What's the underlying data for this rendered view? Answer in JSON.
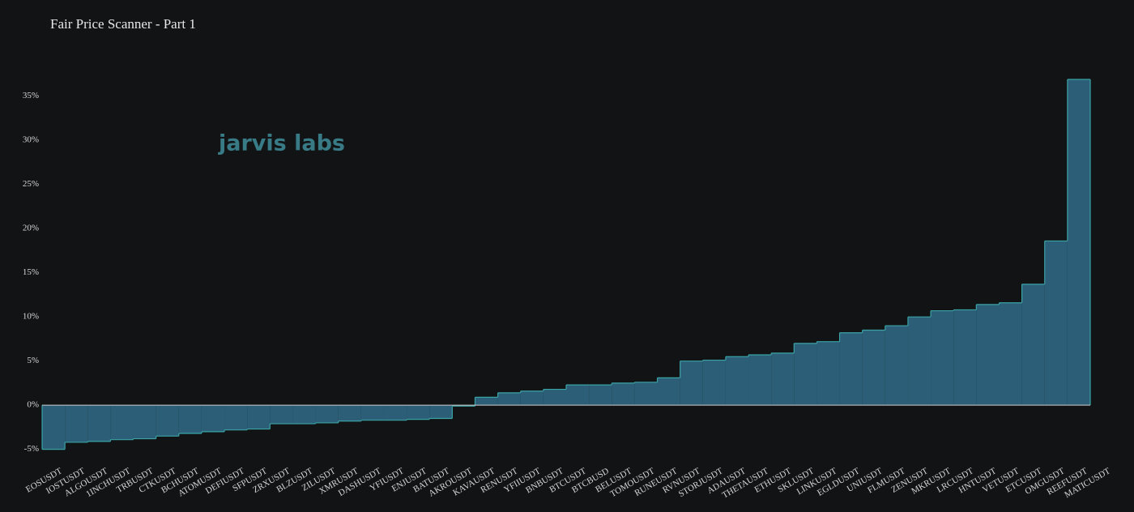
{
  "chart_data": {
    "type": "step-area",
    "title": "Fair Price Scanner - Part 1",
    "logo": "jarvis labs",
    "categories": [
      "EOSUSDT",
      "IOSTUSDT",
      "ALGOUSDT",
      "1INCHUSDT",
      "TRBUSDT",
      "CTKUSDT",
      "BCHUSDT",
      "ATOMUSDT",
      "DEFIUSDT",
      "SFPUSDT",
      "ZRXUSDT",
      "BLZUSDT",
      "ZILUSDT",
      "XMRUSDT",
      "DASHUSDT",
      "YFIUSDT",
      "ENJUSDT",
      "BATUSDT",
      "AKROUSDT",
      "KAVAUSDT",
      "RENUSDT",
      "YFIIUSDT",
      "BNBUSDT",
      "BTCUSDT",
      "BTCBUSD",
      "BELUSDT",
      "TOMOUSDT",
      "RUNEUSDT",
      "RVNUSDT",
      "STORJUSDT",
      "ADAUSDT",
      "THETAUSDT",
      "ETHUSDT",
      "SKLUSDT",
      "LINKUSDT",
      "EGLDUSDT",
      "UNIUSDT",
      "FLMUSDT",
      "ZENUSDT",
      "MKRUSDT",
      "LRCUSDT",
      "HNTUSDT",
      "VETUSDT",
      "ETCUSDT",
      "OMGUSDT",
      "REEFUSDT",
      "MATICUSDT"
    ],
    "values": [
      -5.0,
      -4.2,
      -4.1,
      -3.9,
      -3.8,
      -3.5,
      -3.2,
      -3.0,
      -2.8,
      -2.7,
      -2.1,
      -2.1,
      -2.0,
      -1.8,
      -1.7,
      -1.7,
      -1.6,
      -1.5,
      -0.1,
      0.9,
      1.4,
      1.6,
      1.8,
      2.3,
      2.3,
      2.5,
      2.6,
      3.1,
      5.0,
      5.1,
      5.5,
      5.7,
      5.9,
      7.0,
      7.2,
      8.2,
      8.5,
      9.0,
      10.0,
      10.7,
      10.8,
      11.4,
      11.6,
      13.7,
      18.6,
      36.9,
      36.9
    ],
    "fill_color": "#2c5f77",
    "line_color": "#3aa3a6",
    "ylim": [
      -6.5,
      38
    ],
    "yticks": [
      {
        "value": -5,
        "label": "-5%"
      },
      {
        "value": 0,
        "label": "0%"
      },
      {
        "value": 5,
        "label": "5%"
      },
      {
        "value": 10,
        "label": "10%"
      },
      {
        "value": 15,
        "label": "15%"
      },
      {
        "value": 20,
        "label": "20%"
      },
      {
        "value": 25,
        "label": "25%"
      },
      {
        "value": 30,
        "label": "30%"
      },
      {
        "value": 35,
        "label": "35%"
      }
    ]
  }
}
